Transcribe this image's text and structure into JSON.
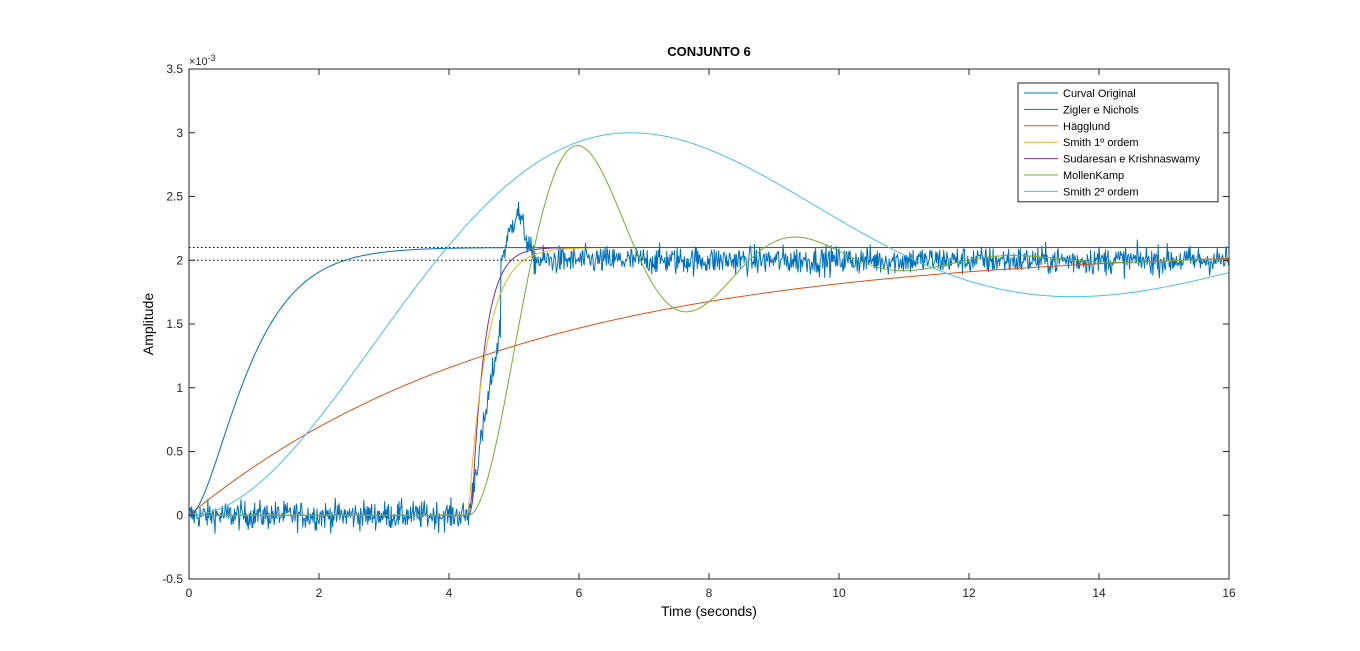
{
  "chart_data": {
    "type": "line",
    "title": "CONJUNTO 6",
    "xlabel": "Time (seconds)",
    "ylabel": "Amplitude",
    "y_exponent_label": "×10",
    "y_exponent_power": "-3",
    "xlim": [
      0,
      16
    ],
    "ylim": [
      -0.5,
      3.5
    ],
    "x_ticks": [
      "0",
      "2",
      "4",
      "6",
      "8",
      "10",
      "12",
      "14",
      "16"
    ],
    "y_ticks": [
      "-0.5",
      "0",
      "0.5",
      "1",
      "1.5",
      "2",
      "2.5",
      "3",
      "3.5"
    ],
    "grid": false,
    "legend_position": "top-right",
    "reference_lines": [
      2.1,
      2.0
    ],
    "series": [
      {
        "name": "Curval Original",
        "color": "#0072BD",
        "model": "noisy_step",
        "delay": 4.3,
        "rise": 0.7,
        "final": 2.0,
        "overshoot_peak": 2.5,
        "overshoot_range": [
          4.8,
          5.3
        ],
        "noise": 0.1
      },
      {
        "name": "Zigler e Nichols",
        "color": "#0072BD",
        "model": "second_order_overdamped",
        "tau": 0.5,
        "final": 2.1
      },
      {
        "name": "Hägglund",
        "color": "#D95319",
        "model": "first_order",
        "tau": 5.0,
        "final": 2.1
      },
      {
        "name": "Smith 1º ordem",
        "color": "#EDB120",
        "model": "first_order_delay",
        "delay": 4.3,
        "tau": 0.28,
        "final": 2.1
      },
      {
        "name": "Sudaresan e Krishnaswamy",
        "color": "#7E2F8E",
        "model": "first_order_delay",
        "delay": 4.35,
        "tau": 0.2,
        "final": 2.1
      },
      {
        "name": "MollenKamp",
        "color": "#77AC30",
        "model": "second_order_underdamped_delay",
        "delay": 4.3,
        "peak": 2.9,
        "peak_time": 5.8,
        "period": 3.35,
        "final": 2.0
      },
      {
        "name": "Smith 2º ordem",
        "color": "#4DBEEE",
        "model": "second_order_underdamped",
        "peak": 3.0,
        "peak_time": 6.8,
        "period": 13.6,
        "final": 2.1
      }
    ]
  }
}
